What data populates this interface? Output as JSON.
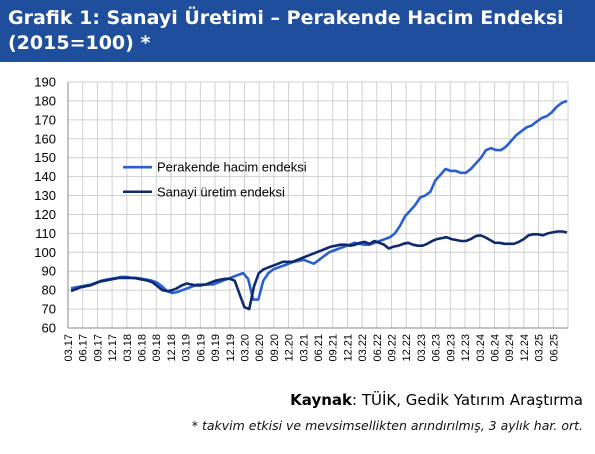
{
  "header": {
    "title_line1": "Grafik 1: Sanayi Üretimi – Perakende Hacim Endeksi",
    "title_line2": "(2015=100) *"
  },
  "footer": {
    "source_label": "Kaynak",
    "source_text": ": TÜİK, Gedik Yatırım Araştırma",
    "note": "* takvim etkisi ve mevsimsellikten arındırılmış, 3 aylık har. ort."
  },
  "colors": {
    "title_bg": "#1f4e9c",
    "retail": "#2a5fd3",
    "industrial": "#0e2a6e",
    "grid": "#d0d0d0"
  },
  "chart_data": {
    "type": "line",
    "title": "",
    "xlabel": "",
    "ylabel": "",
    "ylim": [
      60,
      190
    ],
    "yticks": [
      60,
      70,
      80,
      90,
      100,
      110,
      120,
      130,
      140,
      150,
      160,
      170,
      180,
      190
    ],
    "grid": true,
    "legend_position": "inside-left",
    "x_labels": [
      "03.17",
      "06.17",
      "09.17",
      "12.17",
      "03.18",
      "06.18",
      "09.18",
      "12.18",
      "03.19",
      "06.19",
      "09.19",
      "12.19",
      "03.20",
      "06.20",
      "09.20",
      "12.20",
      "03.21",
      "06.21",
      "09.21",
      "12.21",
      "03.22",
      "06.22",
      "09.22",
      "12.22",
      "03.23",
      "06.23",
      "09.23",
      "12.23",
      "03.24",
      "06.24",
      "09.24",
      "12.24",
      "03.25",
      "06.25"
    ],
    "series": [
      {
        "name": "Perakende hacim endeksi",
        "color": "#2a5fd3",
        "values": [
          81,
          81.5,
          82,
          82.5,
          83,
          84,
          85,
          85.5,
          86,
          86.5,
          87,
          87,
          86.5,
          86.5,
          86,
          85.5,
          85,
          84,
          82,
          79.5,
          78.5,
          79,
          80,
          81,
          82,
          83,
          83,
          83,
          83,
          84,
          85,
          86,
          87,
          88,
          89,
          86,
          75,
          75,
          85,
          89,
          91,
          92,
          93,
          94,
          95,
          95.5,
          96,
          95,
          94,
          96,
          98,
          100,
          101,
          102,
          103,
          104,
          105,
          104.5,
          104,
          104,
          105,
          106,
          107,
          108,
          110,
          114,
          119,
          122,
          125,
          129,
          130,
          132,
          138,
          141,
          144,
          143,
          143,
          142,
          142,
          144,
          147,
          150,
          154,
          155,
          154,
          154,
          156,
          159,
          162,
          164,
          166,
          167,
          169,
          171,
          172,
          174,
          177,
          179,
          180
        ]
      },
      {
        "name": "Sanayi üretim endeksi",
        "color": "#0e2a6e",
        "values": [
          79.5,
          80.5,
          81.5,
          82,
          82.5,
          83.5,
          84.5,
          85,
          85.5,
          86,
          86.5,
          86.5,
          86.5,
          86.5,
          86,
          85.5,
          85,
          84,
          82,
          80,
          79.5,
          80,
          81,
          82.5,
          83.5,
          83,
          82.5,
          82.5,
          83,
          84,
          85,
          85.5,
          86,
          86,
          85,
          78,
          71,
          70,
          82,
          89,
          91,
          92,
          93,
          94,
          95,
          95,
          95,
          96,
          97,
          98,
          99,
          100,
          101,
          102,
          103,
          103.5,
          104,
          104,
          103.5,
          104,
          105,
          105.5,
          104.5,
          106,
          105,
          104,
          102,
          103,
          103.5,
          104.5,
          105,
          104,
          103.5,
          103.5,
          104.5,
          106,
          107,
          107.5,
          108,
          107,
          106.5,
          106,
          106,
          107,
          108.5,
          109,
          108,
          106.5,
          105,
          105,
          104.5,
          104.5,
          104.5,
          105.5,
          107,
          109,
          109.5,
          109.5,
          109,
          110,
          110.5,
          111,
          111,
          110.5
        ]
      }
    ]
  }
}
